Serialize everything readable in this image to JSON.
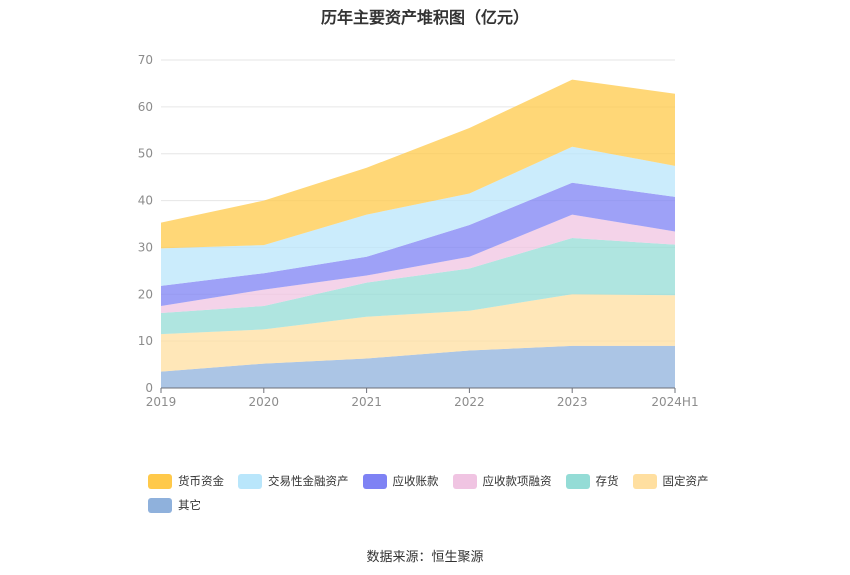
{
  "chart_data": {
    "type": "area",
    "stacked": true,
    "title": "历年主要资产堆积图（亿元）",
    "categories": [
      "2019",
      "2020",
      "2021",
      "2022",
      "2023",
      "2024H1"
    ],
    "ylim": [
      0,
      70
    ],
    "yticks": [
      0,
      10,
      20,
      30,
      40,
      50,
      60,
      70
    ],
    "grid": true,
    "legend_position": "bottom",
    "series": [
      {
        "name": "其它",
        "color": "#8fb1dc",
        "values": [
          3.5,
          5.2,
          6.3,
          8.0,
          9.0,
          9.0
        ]
      },
      {
        "name": "固定资产",
        "color": "#ffdfa0",
        "values": [
          8.0,
          7.3,
          8.9,
          8.5,
          11.0,
          10.8
        ]
      },
      {
        "name": "存货",
        "color": "#94dcd6",
        "values": [
          4.5,
          5.0,
          7.3,
          9.0,
          12.0,
          10.8
        ]
      },
      {
        "name": "应收款项融资",
        "color": "#f0c4e2",
        "values": [
          1.5,
          3.5,
          1.5,
          2.5,
          5.0,
          2.8
        ]
      },
      {
        "name": "应收账款",
        "color": "#7e82f4",
        "values": [
          4.3,
          3.5,
          4.0,
          6.8,
          6.8,
          7.4
        ]
      },
      {
        "name": "交易性金融资产",
        "color": "#b9e6fb",
        "values": [
          8.0,
          6.0,
          9.0,
          6.7,
          7.7,
          6.6
        ]
      },
      {
        "name": "货币资金",
        "color": "#ffc94a",
        "values": [
          5.5,
          9.5,
          10.0,
          14.0,
          14.3,
          15.4
        ]
      }
    ],
    "legend_order": [
      "货币资金",
      "交易性金融资产",
      "应收账款",
      "应收款项融资",
      "存货",
      "固定资产",
      "其它"
    ]
  },
  "source": "数据来源：恒生聚源"
}
